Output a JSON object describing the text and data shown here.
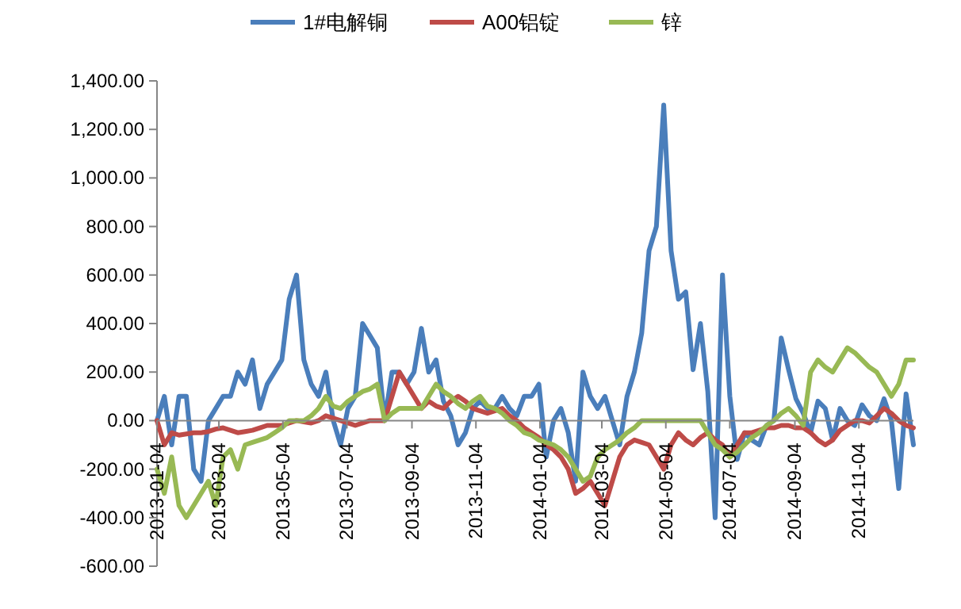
{
  "chart_data": {
    "type": "line",
    "legend": "top",
    "grid": false,
    "marker": "none",
    "line_style": "solid",
    "x": [
      "2013-01-04",
      "2013-01-11",
      "2013-01-18",
      "2013-01-25",
      "2013-02-01",
      "2013-02-08",
      "2013-02-15",
      "2013-02-22",
      "2013-03-01",
      "2013-03-08",
      "2013-03-15",
      "2013-03-22",
      "2013-03-29",
      "2013-04-05",
      "2013-04-12",
      "2013-04-19",
      "2013-04-26",
      "2013-05-03",
      "2013-05-10",
      "2013-05-17",
      "2013-05-24",
      "2013-05-31",
      "2013-06-07",
      "2013-06-14",
      "2013-06-21",
      "2013-06-28",
      "2013-07-05",
      "2013-07-12",
      "2013-07-19",
      "2013-07-26",
      "2013-08-02",
      "2013-08-09",
      "2013-08-16",
      "2013-08-23",
      "2013-08-30",
      "2013-09-06",
      "2013-09-13",
      "2013-09-20",
      "2013-09-27",
      "2013-10-04",
      "2013-10-11",
      "2013-10-18",
      "2013-10-25",
      "2013-11-01",
      "2013-11-08",
      "2013-11-15",
      "2013-11-22",
      "2013-11-29",
      "2013-12-06",
      "2013-12-13",
      "2013-12-20",
      "2013-12-27",
      "2014-01-03",
      "2014-01-10",
      "2014-01-17",
      "2014-01-24",
      "2014-01-31",
      "2014-02-07",
      "2014-02-14",
      "2014-02-21",
      "2014-02-28",
      "2014-03-07",
      "2014-03-14",
      "2014-03-21",
      "2014-03-28",
      "2014-04-04",
      "2014-04-11",
      "2014-04-18",
      "2014-04-25",
      "2014-05-02",
      "2014-05-09",
      "2014-05-16",
      "2014-05-23",
      "2014-05-30",
      "2014-06-06",
      "2014-06-13",
      "2014-06-20",
      "2014-06-27",
      "2014-07-04",
      "2014-07-11",
      "2014-07-18",
      "2014-07-25",
      "2014-08-01",
      "2014-08-08",
      "2014-08-15",
      "2014-08-22",
      "2014-08-29",
      "2014-09-05",
      "2014-09-12",
      "2014-09-19",
      "2014-09-26",
      "2014-10-03",
      "2014-10-10",
      "2014-10-17",
      "2014-10-24",
      "2014-10-31",
      "2014-11-07",
      "2014-11-14",
      "2014-11-21",
      "2014-11-28",
      "2014-12-05",
      "2014-12-12",
      "2014-12-19",
      "2014-12-26"
    ],
    "xlim": [
      "2013-01-04",
      "2014-12-26"
    ],
    "xticks": [
      {
        "value": "2013-01-04",
        "label": "2013-01-04"
      },
      {
        "value": "2013-03-04",
        "label": "2013-03-04"
      },
      {
        "value": "2013-05-04",
        "label": "2013-05-04"
      },
      {
        "value": "2013-07-04",
        "label": "2013-07-04"
      },
      {
        "value": "2013-09-04",
        "label": "2013-09-04"
      },
      {
        "value": "2013-11-04",
        "label": "2013-11-04"
      },
      {
        "value": "2014-01-04",
        "label": "2014-01-04"
      },
      {
        "value": "2014-03-04",
        "label": "2014-03-04"
      },
      {
        "value": "2014-05-04",
        "label": "2014-05-04"
      },
      {
        "value": "2014-07-04",
        "label": "2014-07-04"
      },
      {
        "value": "2014-09-04",
        "label": "2014-09-04"
      },
      {
        "value": "2014-11-04",
        "label": "2014-11-04"
      }
    ],
    "ylim": [
      -600,
      1400
    ],
    "yticks": [
      {
        "value": -600,
        "label": "-600.00"
      },
      {
        "value": -400,
        "label": "-400.00"
      },
      {
        "value": -200,
        "label": "-200.00"
      },
      {
        "value": 0,
        "label": "0.00"
      },
      {
        "value": 200,
        "label": "200.00"
      },
      {
        "value": 400,
        "label": "400.00"
      },
      {
        "value": 600,
        "label": "600.00"
      },
      {
        "value": 800,
        "label": "800.00"
      },
      {
        "value": 1000,
        "label": "1,000.00"
      },
      {
        "value": 1200,
        "label": "1,200.00"
      },
      {
        "value": 1400,
        "label": "1,400.00"
      }
    ],
    "series": [
      {
        "name": "1#电解铜",
        "color": "#4a7ebb",
        "values": [
          0,
          100,
          -100,
          100,
          100,
          -200,
          -250,
          0,
          50,
          100,
          100,
          200,
          150,
          250,
          50,
          150,
          200,
          250,
          500,
          600,
          250,
          150,
          100,
          200,
          0,
          -100,
          50,
          100,
          400,
          350,
          300,
          0,
          200,
          200,
          150,
          200,
          380,
          200,
          250,
          80,
          20,
          -100,
          -50,
          50,
          80,
          50,
          50,
          100,
          50,
          20,
          100,
          100,
          150,
          -150,
          0,
          50,
          -50,
          -250,
          200,
          100,
          50,
          100,
          0,
          -100,
          100,
          200,
          360,
          700,
          800,
          1300,
          700,
          500,
          530,
          210,
          400,
          120,
          -400,
          600,
          100,
          -160,
          -50,
          -80,
          -100,
          -20,
          0,
          340,
          210,
          90,
          30,
          -50,
          80,
          50,
          -80,
          50,
          0,
          -20,
          65,
          20,
          0,
          90,
          0,
          -280,
          110,
          -100
        ]
      },
      {
        "name": "A00铝锭",
        "color": "#be4b48",
        "values": [
          0,
          -100,
          -50,
          -60,
          -55,
          -50,
          -50,
          -45,
          -35,
          -30,
          -40,
          -50,
          -45,
          -40,
          -30,
          -20,
          -20,
          -20,
          -10,
          0,
          -5,
          -10,
          0,
          20,
          10,
          0,
          -10,
          -20,
          -10,
          0,
          0,
          0,
          100,
          200,
          150,
          100,
          50,
          80,
          60,
          50,
          80,
          100,
          80,
          50,
          40,
          30,
          40,
          50,
          20,
          0,
          -30,
          -50,
          -70,
          -100,
          -120,
          -150,
          -200,
          -300,
          -280,
          -250,
          -300,
          -350,
          -250,
          -150,
          -100,
          -80,
          -90,
          -100,
          -150,
          -200,
          -100,
          -50,
          -80,
          -100,
          -70,
          -50,
          -80,
          -100,
          -150,
          -100,
          -50,
          -50,
          -40,
          -30,
          -30,
          -20,
          -20,
          -30,
          -30,
          -50,
          -80,
          -100,
          -80,
          -40,
          -20,
          0,
          0,
          -10,
          20,
          50,
          30,
          0,
          -20,
          -30
        ]
      },
      {
        "name": "锌",
        "color": "#98b954",
        "values": [
          -200,
          -300,
          -150,
          -350,
          -400,
          -350,
          -300,
          -250,
          -350,
          -150,
          -120,
          -200,
          -100,
          -90,
          -80,
          -70,
          -50,
          -30,
          0,
          0,
          0,
          20,
          50,
          100,
          60,
          50,
          80,
          100,
          120,
          130,
          150,
          0,
          30,
          50,
          50,
          50,
          50,
          100,
          150,
          120,
          100,
          70,
          50,
          80,
          100,
          60,
          50,
          30,
          0,
          -20,
          -50,
          -60,
          -80,
          -90,
          -100,
          -120,
          -150,
          -200,
          -250,
          -230,
          -150,
          -120,
          -100,
          -80,
          -50,
          -30,
          0,
          0,
          0,
          0,
          0,
          0,
          0,
          0,
          0,
          -50,
          -100,
          -120,
          -150,
          -130,
          -100,
          -70,
          -50,
          -20,
          0,
          30,
          50,
          20,
          -20,
          200,
          250,
          220,
          200,
          250,
          300,
          280,
          250,
          220,
          200,
          150,
          100,
          150,
          250,
          250
        ]
      }
    ]
  }
}
